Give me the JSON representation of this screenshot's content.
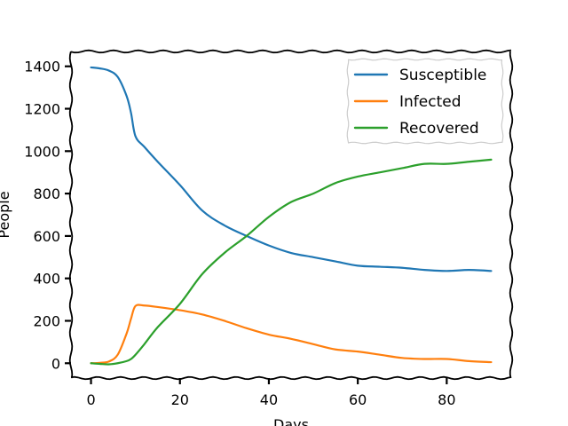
{
  "chart_data": {
    "type": "line",
    "title": "",
    "xlabel": "Days",
    "ylabel": "People",
    "xlim": [
      -4.5,
      94.5
    ],
    "ylim": [
      -70,
      1470
    ],
    "xticks": [
      0,
      20,
      40,
      60,
      80
    ],
    "yticks": [
      0,
      200,
      400,
      600,
      800,
      1000,
      1200,
      1400
    ],
    "grid": false,
    "legend_position": "top-right",
    "series": [
      {
        "name": "Susceptible",
        "color": "#1f77b4",
        "x": [
          0,
          2,
          4,
          6,
          8,
          9,
          10,
          12,
          15,
          20,
          25,
          30,
          35,
          40,
          45,
          50,
          55,
          60,
          65,
          70,
          75,
          80,
          85,
          90
        ],
        "y": [
          1395,
          1390,
          1380,
          1350,
          1260,
          1180,
          1070,
          1020,
          950,
          840,
          720,
          650,
          600,
          555,
          520,
          500,
          480,
          460,
          455,
          450,
          440,
          435,
          440,
          435
        ]
      },
      {
        "name": "Infected",
        "color": "#ff7f0e",
        "x": [
          0,
          2,
          4,
          6,
          8,
          9,
          10,
          12,
          15,
          20,
          25,
          30,
          35,
          40,
          45,
          50,
          55,
          60,
          65,
          70,
          75,
          80,
          85,
          90
        ],
        "y": [
          0,
          2,
          8,
          40,
          140,
          210,
          270,
          272,
          265,
          250,
          230,
          200,
          165,
          135,
          115,
          90,
          65,
          55,
          40,
          25,
          20,
          20,
          10,
          5
        ]
      },
      {
        "name": "Recovered",
        "color": "#2ca02c",
        "x": [
          0,
          2,
          4,
          6,
          8,
          9,
          10,
          12,
          15,
          20,
          25,
          30,
          35,
          40,
          45,
          50,
          55,
          60,
          65,
          70,
          75,
          80,
          85,
          90
        ],
        "y": [
          0,
          -3,
          -5,
          0,
          10,
          20,
          40,
          90,
          170,
          280,
          420,
          520,
          600,
          690,
          760,
          800,
          850,
          880,
          900,
          920,
          940,
          940,
          950,
          960
        ]
      }
    ]
  }
}
